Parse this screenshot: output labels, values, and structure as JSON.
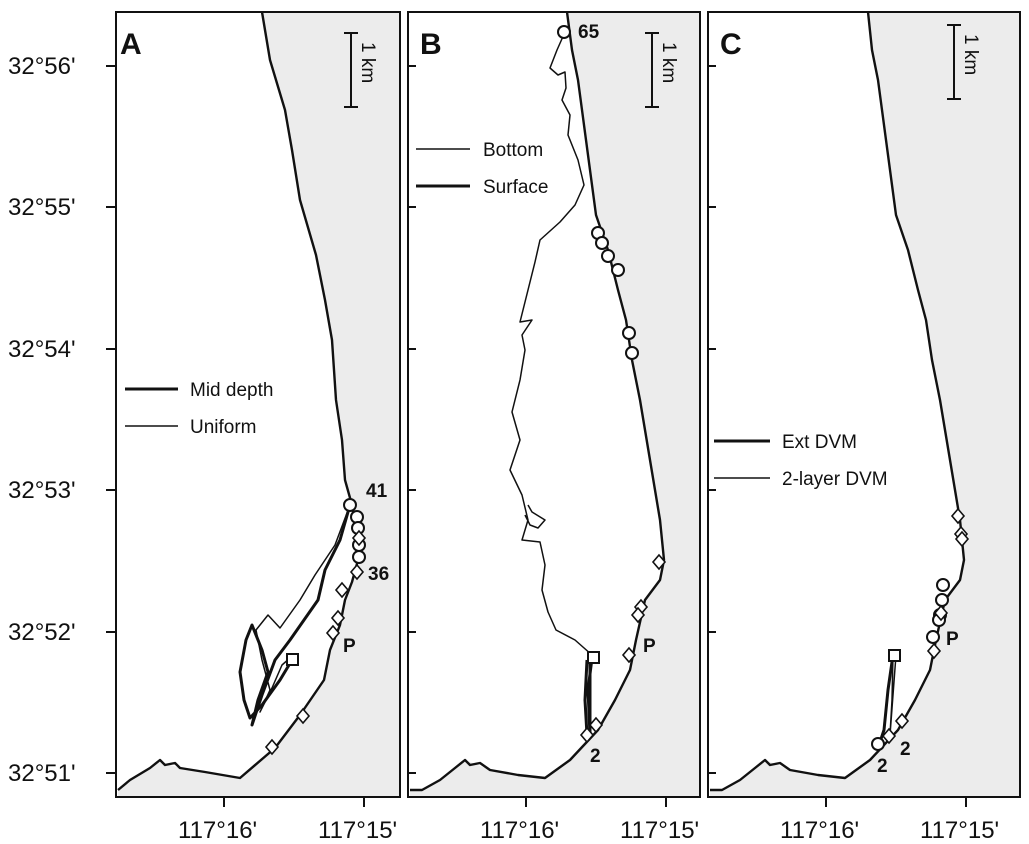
{
  "figure": {
    "y_axis_labels": [
      "32°56'",
      "32°55'",
      "32°54'",
      "32°53'",
      "32°52'",
      "32°51'"
    ],
    "panels": [
      {
        "letter": "A",
        "scale_label": "1 km",
        "legend": [
          {
            "label": "Mid depth",
            "style": "thick"
          },
          {
            "label": "Uniform",
            "style": "thin"
          }
        ],
        "x_axis_labels": [
          "117°16'",
          "117°15'"
        ],
        "marker_labels": [
          "41",
          "36",
          "P"
        ]
      },
      {
        "letter": "B",
        "scale_label": "1 km",
        "legend": [
          {
            "label": "Bottom",
            "style": "thin"
          },
          {
            "label": "Surface",
            "style": "thick"
          }
        ],
        "x_axis_labels": [
          "117°16'",
          "117°15'"
        ],
        "marker_labels": [
          "65",
          "P",
          "2"
        ]
      },
      {
        "letter": "C",
        "scale_label": "1 km",
        "legend": [
          {
            "label": "Ext DVM",
            "style": "thick"
          },
          {
            "label": "2-layer DVM",
            "style": "thin"
          }
        ],
        "x_axis_labels": [
          "117°16'",
          "117°15'"
        ],
        "marker_labels": [
          "P",
          "2",
          "2"
        ]
      }
    ],
    "colors": {
      "land": "#ececec",
      "ink": "#111111",
      "water": "#ffffff"
    },
    "marker_symbols": [
      "circle",
      "diamond",
      "square"
    ]
  }
}
